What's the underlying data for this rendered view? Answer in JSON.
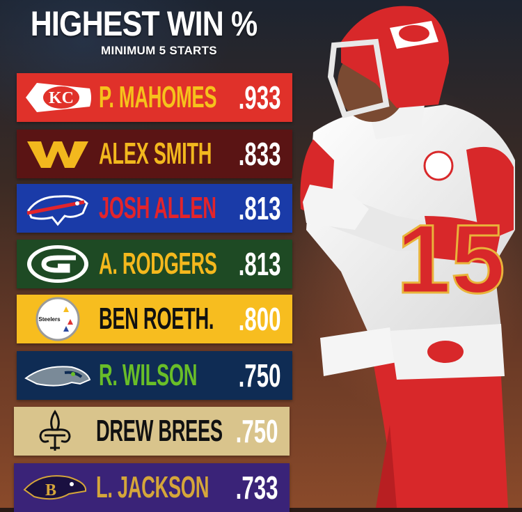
{
  "header": {
    "title": "HIGHEST WIN %",
    "subtitle": "MINIMUM 5 STARTS"
  },
  "rows": [
    {
      "team": "Chiefs",
      "logo_icon": "chiefs-arrowhead-icon",
      "name": "P. MAHOMES",
      "value": ".933",
      "bg": "#e0312a",
      "name_color": "#f6c21c"
    },
    {
      "team": "Washington",
      "logo_icon": "washington-w-icon",
      "name": "ALEX SMITH",
      "value": ".833",
      "bg": "#5a1414",
      "name_color": "#f2b81e"
    },
    {
      "team": "Bills",
      "logo_icon": "bills-buffalo-icon",
      "name": "JOSH ALLEN",
      "value": ".813",
      "bg": "#1a3ba8",
      "name_color": "#e3242b"
    },
    {
      "team": "Packers",
      "logo_icon": "packers-g-icon",
      "name": "A. RODGERS",
      "value": ".813",
      "bg": "#1e4a24",
      "name_color": "#f4b81d"
    },
    {
      "team": "Steelers",
      "logo_icon": "steelers-logo-icon",
      "name": "BEN ROETH.",
      "value": ".800",
      "bg": "#f7bd1f",
      "name_color": "#111111"
    },
    {
      "team": "Seahawks",
      "logo_icon": "seahawks-head-icon",
      "name": "R. WILSON",
      "value": ".750",
      "bg": "#0f2c54",
      "name_color": "#69be28"
    },
    {
      "team": "Saints",
      "logo_icon": "saints-fleur-de-lis-icon",
      "name": "DREW BREES",
      "value": ".750",
      "bg": "#d9c48c",
      "name_color": "#111111"
    },
    {
      "team": "Ravens",
      "logo_icon": "ravens-head-icon",
      "name": "L. JACKSON",
      "value": ".733",
      "bg": "#3a2378",
      "name_color": "#d5a63a"
    }
  ],
  "logo_labels": {
    "steelers": "Steelers"
  },
  "player": {
    "jersey_number": "15"
  }
}
